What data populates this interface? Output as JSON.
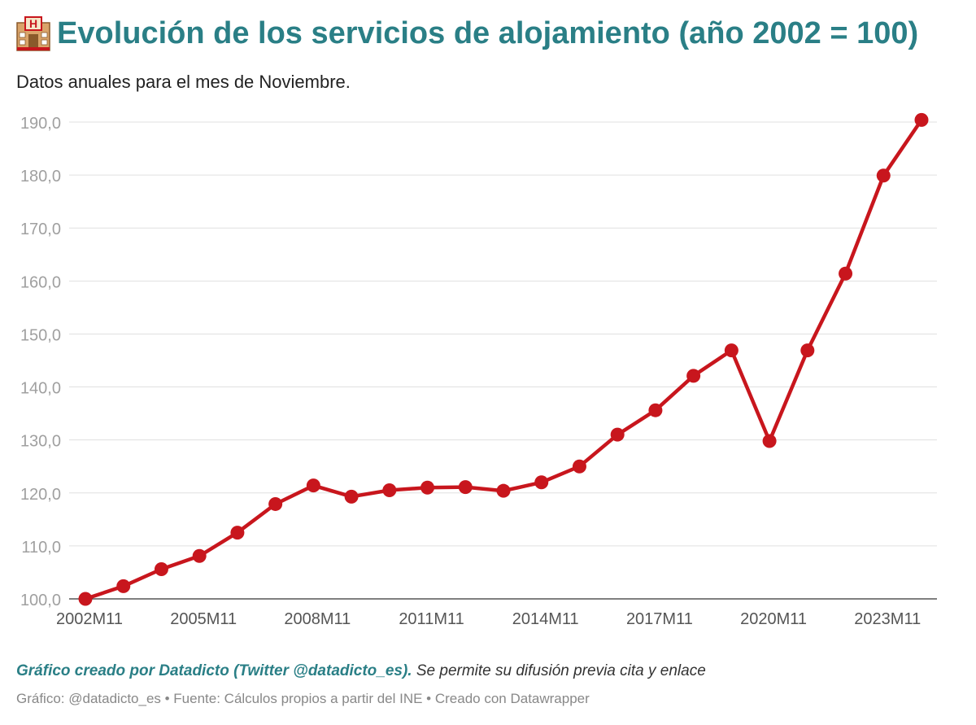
{
  "header": {
    "icon": "hotel-icon",
    "title": "Evolución de los servicios de alojamiento (año 2002 = 100)",
    "subtitle": "Datos anuales para el mes de Noviembre."
  },
  "credit": {
    "strong": "Gráfico creado por Datadicto (Twitter @datadicto_es).",
    "rest": " Se permite su difusión previa cita y enlace"
  },
  "footer": {
    "text": "Gráfico: @datadicto_es • Fuente: Cálculos propios a partir del INE • Creado con Datawrapper"
  },
  "colors": {
    "title": "#2a7f86",
    "line": "#c8161d",
    "grid": "#e0e0e0",
    "tick": "#a0a0a0"
  },
  "chart_data": {
    "type": "line",
    "title": "Evolución de los servicios de alojamiento (año 2002 = 100)",
    "subtitle": "Datos anuales para el mes de Noviembre.",
    "xlabel": "",
    "ylabel": "",
    "ylim": [
      100,
      190
    ],
    "y_ticks": [
      100,
      110,
      120,
      130,
      140,
      150,
      160,
      170,
      180,
      190
    ],
    "y_tick_labels": [
      "100,0",
      "110,0",
      "120,0",
      "130,0",
      "140,0",
      "150,0",
      "160,0",
      "170,0",
      "180,0",
      "190,0"
    ],
    "x": [
      "2002M11",
      "2003M11",
      "2004M11",
      "2005M11",
      "2006M11",
      "2007M11",
      "2008M11",
      "2009M11",
      "2010M11",
      "2011M11",
      "2012M11",
      "2013M11",
      "2014M11",
      "2015M11",
      "2016M11",
      "2017M11",
      "2018M11",
      "2019M11",
      "2020M11",
      "2021M11",
      "2022M11",
      "2023M11",
      "2024M11"
    ],
    "x_tick_labels": [
      "2002M11",
      "2005M11",
      "2008M11",
      "2011M11",
      "2014M11",
      "2017M11",
      "2020M11",
      "2023M11"
    ],
    "series": [
      {
        "values": [
          100.0,
          102.4,
          105.6,
          108.1,
          112.5,
          117.9,
          121.4,
          119.3,
          120.5,
          121.0,
          121.1,
          120.4,
          122.0,
          125.0,
          131.0,
          135.6,
          142.1,
          146.9,
          129.8,
          146.9,
          161.4,
          179.9,
          190.4
        ]
      }
    ],
    "grid": true,
    "legend": "none"
  }
}
